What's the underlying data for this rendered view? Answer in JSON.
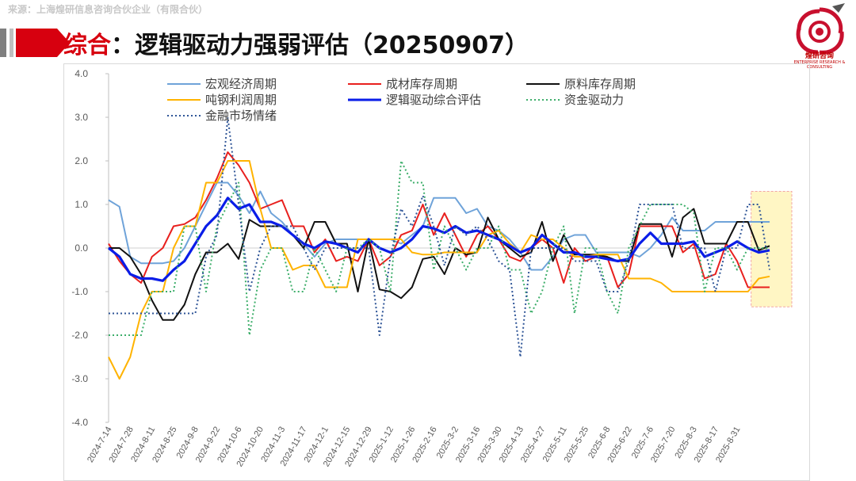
{
  "header": {
    "source": "来源：上海煌研信息咨询合伙企业（有限合伙）",
    "title_prefix": "综合",
    "title_rest": "：逻辑驱动力强弱评估（20250907）"
  },
  "logo": {
    "text": "煌研咨询",
    "sub": "ENTERPRISE RESEARCH & CONSULTING"
  },
  "colors": {
    "accent": "#d7000f",
    "highlight_box": "#fff3b0"
  },
  "chart_data": {
    "type": "line",
    "title": "",
    "xlabel": "",
    "ylabel": "",
    "ylim": [
      -4,
      4
    ],
    "yticks": [
      "4.0",
      "3.0",
      "2.0",
      "1.0",
      "0.0",
      "-1.0",
      "-2.0",
      "-3.0",
      "-4.0"
    ],
    "grid": false,
    "legend": "top",
    "x_tick_labels": [
      "2024-7-14",
      "2024-7-28",
      "2024-8-11",
      "2024-8-25",
      "2024-9-8",
      "2024-9-22",
      "2024-10-6",
      "2024-10-20",
      "2024-11-3",
      "2024-11-17",
      "2024-12-1",
      "2024-12-15",
      "2024-12-29",
      "2025-1-12",
      "2025-1-26",
      "2025-2-16",
      "2025-3-2",
      "2025-3-16",
      "2025-3-30",
      "2025-4-13",
      "2025-4-27",
      "2025-5-11",
      "2025-5-25",
      "2025-6-8",
      "2025-6-22",
      "2025-7-6",
      "2025-7-20",
      "2025-8-3",
      "2025-8-17",
      "2025-8-31"
    ],
    "highlight": "last period (2025-8-24 to 2025-9-7)",
    "series": [
      {
        "name": "宏观经济周期",
        "color": "#6fa3d9",
        "style": "solid",
        "width": 2,
        "values": [
          1.1,
          0.95,
          -0.2,
          -0.35,
          -0.35,
          -0.35,
          -0.3,
          0.0,
          0.5,
          1.0,
          1.5,
          1.5,
          1.2,
          0.8,
          1.3,
          0.8,
          0.6,
          0.3,
          0.1,
          -0.2,
          0.1,
          0.2,
          0.2,
          0.2,
          0.2,
          0.2,
          0.2,
          0.1,
          0.3,
          0.5,
          1.15,
          1.15,
          1.15,
          0.8,
          0.9,
          0.5,
          0.4,
          0.2,
          -0.1,
          -0.5,
          -0.5,
          -0.2,
          0.2,
          0.3,
          0.3,
          -0.1,
          -0.1,
          -0.1,
          -0.1,
          -0.2,
          0.0,
          0.3,
          0.7,
          0.4,
          0.4,
          0.4,
          0.6,
          0.6,
          0.6,
          0.6,
          0.6,
          0.6
        ]
      },
      {
        "name": "成材库存周期",
        "color": "#e8201e",
        "style": "solid",
        "width": 2,
        "values": [
          0.1,
          -0.3,
          -0.6,
          -0.8,
          -0.2,
          0.0,
          0.5,
          0.55,
          0.7,
          1.1,
          1.6,
          2.2,
          1.9,
          1.5,
          0.9,
          1.0,
          1.1,
          0.5,
          0.5,
          -0.1,
          0.2,
          -0.3,
          -0.2,
          -0.3,
          0.2,
          -0.4,
          -0.2,
          0.3,
          0.4,
          1.0,
          0.3,
          0.8,
          0.3,
          -0.2,
          0.3,
          0.5,
          0.2,
          -0.2,
          -0.3,
          0.0,
          0.2,
          0.0,
          -0.8,
          0.0,
          -0.3,
          -0.2,
          -0.2,
          -0.9,
          -0.6,
          0.5,
          0.5,
          0.5,
          0.5,
          -0.1,
          0.1,
          -0.7,
          -0.6,
          0.1,
          -0.3,
          -0.9,
          -0.9,
          -0.9
        ]
      },
      {
        "name": "原料库存周期",
        "color": "#111111",
        "style": "solid",
        "width": 2,
        "values": [
          0.0,
          0.0,
          -0.2,
          -0.6,
          -1.2,
          -1.65,
          -1.65,
          -1.3,
          -0.6,
          -0.1,
          -0.1,
          0.1,
          -0.25,
          0.65,
          0.5,
          0.5,
          0.5,
          0.3,
          0.0,
          0.6,
          0.6,
          0.1,
          0.1,
          -1.0,
          0.2,
          -0.95,
          -1.0,
          -1.15,
          -0.9,
          -0.25,
          -0.2,
          -0.6,
          0.0,
          -0.15,
          -0.1,
          0.7,
          0.2,
          0.0,
          -0.2,
          -0.1,
          0.6,
          -0.3,
          0.3,
          -0.15,
          -0.15,
          -0.15,
          -0.2,
          -0.3,
          -0.3,
          0.55,
          0.55,
          0.55,
          -0.2,
          0.7,
          0.9,
          0.1,
          0.1,
          0.1,
          0.6,
          0.6,
          -0.05,
          0.05
        ]
      },
      {
        "name": "吨钢利润周期",
        "color": "#ffb300",
        "style": "solid",
        "width": 2,
        "values": [
          -2.5,
          -3.0,
          -2.5,
          -1.5,
          -1.0,
          -1.0,
          0.0,
          0.5,
          0.5,
          1.5,
          1.5,
          2.0,
          2.0,
          2.0,
          0.9,
          0.0,
          0.0,
          -0.5,
          -0.4,
          -0.4,
          -0.9,
          -0.9,
          -0.9,
          0.2,
          0.2,
          0.2,
          0.2,
          0.2,
          -0.1,
          -0.15,
          -0.15,
          -0.1,
          -0.1,
          -0.1,
          -0.1,
          0.3,
          0.4,
          0.1,
          -0.1,
          0.3,
          0.2,
          0.2,
          0.0,
          -0.2,
          -0.2,
          -0.15,
          -0.15,
          -0.15,
          -0.7,
          -0.7,
          -0.7,
          -0.8,
          -1.0,
          -1.0,
          -1.0,
          -1.0,
          -1.0,
          -1.0,
          -1.0,
          -1.0,
          -0.7,
          -0.65
        ]
      },
      {
        "name": "逻辑驱动综合评估",
        "color": "#0a1de8",
        "style": "solid",
        "width": 3.2,
        "values": [
          0.0,
          -0.2,
          -0.6,
          -0.7,
          -0.7,
          -0.75,
          -0.5,
          -0.3,
          0.1,
          0.5,
          0.75,
          1.15,
          0.9,
          1.0,
          0.6,
          0.6,
          0.5,
          0.3,
          0.1,
          0.0,
          0.15,
          0.1,
          0.0,
          -0.1,
          0.2,
          0.0,
          -0.1,
          0.0,
          0.2,
          0.5,
          0.45,
          0.35,
          0.5,
          0.35,
          0.4,
          0.3,
          0.2,
          0.05,
          -0.1,
          0.0,
          0.3,
          0.1,
          -0.1,
          -0.1,
          -0.2,
          -0.2,
          -0.25,
          -0.3,
          -0.25,
          0.1,
          0.35,
          0.1,
          0.1,
          0.1,
          0.15,
          -0.2,
          -0.1,
          0.0,
          0.15,
          0.0,
          -0.1,
          -0.05
        ]
      },
      {
        "name": "资金驱动力",
        "color": "#3dae6a",
        "style": "dotted",
        "width": 2,
        "values": [
          -2.0,
          -2.0,
          -2.0,
          -2.0,
          -1.0,
          -1.0,
          -1.0,
          0.5,
          0.5,
          -1.0,
          0.5,
          1.0,
          1.5,
          -2.0,
          -0.5,
          0.0,
          0.0,
          -1.0,
          -1.0,
          0.0,
          -0.5,
          -1.0,
          0.0,
          0.0,
          0.2,
          0.0,
          -1.0,
          2.0,
          1.5,
          1.5,
          -0.5,
          0.5,
          0.0,
          -0.5,
          0.0,
          0.0,
          0.5,
          -0.5,
          -0.5,
          -1.5,
          -1.0,
          0.0,
          0.5,
          -1.5,
          0.0,
          0.0,
          -1.0,
          -1.5,
          0.0,
          0.5,
          1.0,
          1.0,
          1.0,
          1.0,
          0.8,
          -1.0,
          0.0,
          0.0,
          -0.5,
          0.0,
          0.0,
          0.0
        ]
      },
      {
        "name": "金融市场情绪",
        "color": "#2f5597",
        "style": "dotted",
        "width": 2,
        "values": [
          -1.5,
          -1.5,
          -1.5,
          -1.5,
          -1.5,
          -1.5,
          -1.5,
          -1.5,
          -1.5,
          -0.2,
          0.3,
          3.0,
          1.0,
          -1.0,
          0.0,
          0.5,
          0.5,
          0.5,
          0.0,
          -0.5,
          0.0,
          0.0,
          0.0,
          0.0,
          0.0,
          -2.0,
          -0.2,
          0.9,
          0.5,
          1.2,
          0.5,
          -0.4,
          0.5,
          0.3,
          0.5,
          0.2,
          -0.3,
          -0.5,
          -2.5,
          0.0,
          0.0,
          0.0,
          0.0,
          -0.3,
          -0.3,
          -0.3,
          -1.0,
          -1.0,
          -0.3,
          1.0,
          1.0,
          1.0,
          1.0,
          0.0,
          0.0,
          0.0,
          -1.0,
          0.0,
          0.0,
          1.0,
          1.0,
          -0.5
        ]
      }
    ]
  }
}
